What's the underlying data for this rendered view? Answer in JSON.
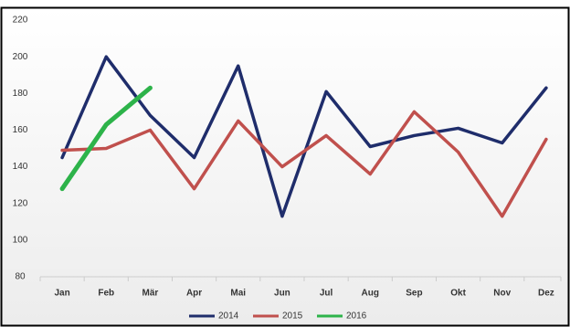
{
  "chart_data": {
    "type": "line",
    "categories": [
      "Jan",
      "Feb",
      "Mär",
      "Apr",
      "Mai",
      "Jun",
      "Jul",
      "Aug",
      "Sep",
      "Okt",
      "Nov",
      "Dez"
    ],
    "series": [
      {
        "name": "2014",
        "color": "#1f2d6b",
        "values": [
          145,
          200,
          168,
          145,
          195,
          113,
          181,
          151,
          157,
          161,
          153,
          183
        ]
      },
      {
        "name": "2015",
        "color": "#c0504d",
        "values": [
          149,
          150,
          160,
          128,
          165,
          140,
          157,
          136,
          170,
          148,
          113,
          155
        ]
      },
      {
        "name": "2016",
        "color": "#2db34a",
        "values": [
          128,
          163,
          183,
          null,
          null,
          null,
          null,
          null,
          null,
          null,
          null,
          null
        ]
      }
    ],
    "ylim": [
      80,
      220
    ],
    "yticks": [
      80,
      100,
      120,
      140,
      160,
      180,
      200,
      220
    ],
    "grid": false,
    "legend": "bottom"
  }
}
